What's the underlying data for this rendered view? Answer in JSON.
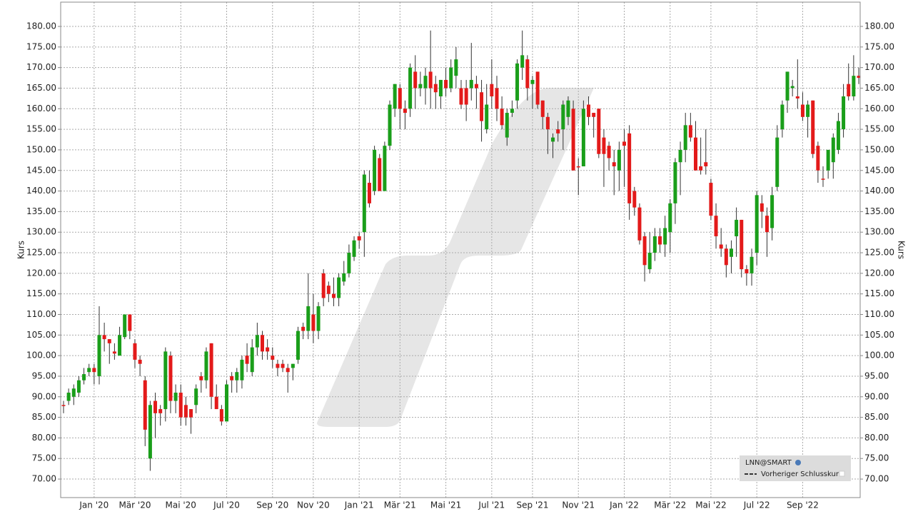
{
  "chart_data": {
    "type": "candlestick",
    "y_label": "Kurs",
    "legend": {
      "title": "LNN@SMART",
      "entry": "Vorheriger Schlusskurs"
    },
    "up_color": "#1a9e1a",
    "down_color": "#e31a1a",
    "grid": true,
    "ylim": [
      65.5,
      185.9
    ],
    "yticks": [
      {
        "value": 70,
        "label": "70.00"
      },
      {
        "value": 75,
        "label": "75.00"
      },
      {
        "value": 80,
        "label": "80.00"
      },
      {
        "value": 85,
        "label": "85.00"
      },
      {
        "value": 90,
        "label": "90.00"
      },
      {
        "value": 95,
        "label": "95.00"
      },
      {
        "value": 100,
        "label": "100.00"
      },
      {
        "value": 105,
        "label": "105.00"
      },
      {
        "value": 110,
        "label": "110.00"
      },
      {
        "value": 115,
        "label": "115.00"
      },
      {
        "value": 120,
        "label": "120.00"
      },
      {
        "value": 125,
        "label": "125.00"
      },
      {
        "value": 130,
        "label": "130.00"
      },
      {
        "value": 135,
        "label": "135.00"
      },
      {
        "value": 140,
        "label": "140.00"
      },
      {
        "value": 145,
        "label": "145.00"
      },
      {
        "value": 150,
        "label": "150.00"
      },
      {
        "value": 155,
        "label": "155.00"
      },
      {
        "value": 160,
        "label": "160.00"
      },
      {
        "value": 165,
        "label": "165.00"
      },
      {
        "value": 170,
        "label": "170.00"
      },
      {
        "value": 175,
        "label": "175.00"
      },
      {
        "value": 180,
        "label": "180.00"
      }
    ],
    "categories": [
      null,
      null,
      null,
      null,
      null,
      null,
      "Jan '20",
      null,
      null,
      null,
      null,
      null,
      null,
      null,
      "Mär '20",
      null,
      null,
      null,
      null,
      null,
      null,
      null,
      null,
      "Mai '20",
      null,
      null,
      null,
      null,
      null,
      null,
      null,
      null,
      "Jul '20",
      null,
      null,
      null,
      null,
      null,
      null,
      null,
      null,
      "Sep '20",
      null,
      null,
      null,
      null,
      null,
      null,
      null,
      "Nov '20",
      null,
      null,
      null,
      null,
      null,
      null,
      null,
      null,
      "Jan '21",
      null,
      null,
      null,
      null,
      null,
      null,
      null,
      "Mär '21",
      null,
      null,
      null,
      null,
      null,
      null,
      null,
      null,
      "Mai '21",
      null,
      null,
      null,
      null,
      null,
      null,
      null,
      null,
      "Jul '21",
      null,
      null,
      null,
      null,
      null,
      null,
      null,
      "Sep '21",
      null,
      null,
      null,
      null,
      null,
      null,
      null,
      null,
      "Nov '21",
      null,
      null,
      null,
      null,
      null,
      null,
      null,
      null,
      "Jan '22",
      null,
      null,
      null,
      null,
      null,
      null,
      null,
      null,
      "Mär '22",
      null,
      null,
      null,
      null,
      null,
      null,
      null,
      "Mai '22",
      null,
      null,
      null,
      null,
      null,
      null,
      null,
      null,
      "Jul '22",
      null,
      null,
      null,
      null,
      null,
      null,
      null,
      null,
      "Sep '22",
      null,
      null,
      null,
      null,
      null,
      null,
      null,
      null,
      null,
      null,
      null
    ],
    "open": [
      88,
      89,
      90,
      91,
      94,
      96,
      97,
      95,
      105,
      104,
      101,
      100,
      104.5,
      110,
      103,
      99,
      94,
      75,
      89,
      87,
      87,
      100,
      89,
      91,
      88,
      87,
      88,
      95,
      94,
      103,
      90,
      87,
      84,
      95,
      94,
      94,
      100,
      96,
      102,
      105,
      102,
      100,
      98,
      98,
      97,
      97,
      99,
      107,
      106,
      110,
      106,
      120,
      117,
      115,
      114,
      118,
      120,
      124,
      129,
      130,
      142,
      140,
      148,
      140,
      151,
      160,
      165,
      160,
      160,
      169,
      165,
      165,
      169,
      166,
      163,
      167,
      165,
      168,
      165,
      165,
      165,
      166,
      164,
      155,
      166,
      165,
      160,
      153,
      159,
      162,
      170,
      172,
      166,
      169,
      162,
      158,
      152,
      155,
      155,
      158,
      160,
      146,
      146,
      161,
      159,
      160,
      153,
      151,
      147,
      145,
      152,
      154,
      140,
      136,
      129,
      121,
      125,
      129,
      127,
      130,
      137,
      147,
      150,
      156,
      153,
      146,
      147,
      142,
      134,
      127,
      126,
      124,
      129,
      133,
      121,
      120,
      125,
      137,
      134,
      131,
      141,
      155,
      162,
      165,
      163,
      161,
      158,
      162,
      151,
      143,
      145,
      147,
      150,
      155,
      166,
      163,
      168
    ],
    "high": [
      89,
      92,
      93,
      95,
      97,
      98,
      98,
      112,
      108,
      104,
      103,
      107,
      110,
      110,
      104,
      100,
      95,
      89,
      91,
      88,
      102,
      101,
      93,
      93,
      90,
      87,
      93,
      96,
      102,
      103,
      93,
      88,
      94,
      96,
      97,
      100,
      103,
      104,
      108,
      106,
      104,
      102,
      99,
      99,
      98,
      98,
      107,
      108,
      120,
      115,
      113,
      121,
      118,
      119,
      120,
      123,
      127,
      129,
      130,
      145,
      145,
      151,
      149,
      152,
      162,
      166,
      166,
      162,
      171,
      173,
      169,
      170,
      179,
      168,
      167,
      170,
      172,
      175,
      167,
      167,
      176,
      168,
      167,
      166,
      172,
      168,
      163,
      160,
      162,
      172,
      179,
      173,
      168,
      169,
      162,
      159,
      154,
      157,
      162,
      163,
      162,
      148,
      162,
      163,
      159,
      160,
      155,
      152,
      150,
      152,
      155,
      156,
      141,
      137,
      130,
      130,
      131,
      131,
      134,
      138,
      148,
      152,
      159,
      159,
      157,
      153,
      155,
      143,
      137,
      131,
      127,
      128,
      136,
      133,
      122,
      126,
      140,
      139,
      136,
      141,
      156,
      162,
      169,
      167,
      172,
      164,
      162,
      162,
      152,
      146,
      150,
      154,
      159,
      166,
      171,
      173,
      170
    ],
    "low": [
      86,
      88,
      88,
      90,
      93,
      95,
      93,
      93,
      101,
      98,
      99,
      100,
      104,
      104,
      97,
      95,
      78,
      72,
      80,
      83,
      84,
      86,
      86,
      83,
      83,
      81,
      86,
      91,
      92,
      87,
      87,
      83,
      84,
      91,
      91,
      92,
      96,
      95,
      100,
      99,
      99,
      97,
      95,
      96,
      91,
      94,
      98,
      104,
      104,
      103,
      104,
      112,
      113,
      112,
      112,
      117,
      119,
      123,
      126,
      124,
      136,
      139,
      140,
      140,
      150,
      158,
      155,
      155,
      158,
      160,
      163,
      161,
      160,
      160,
      160,
      163,
      164,
      165,
      160,
      157,
      162,
      160,
      152,
      154,
      160,
      157,
      155,
      151,
      158,
      160,
      167,
      162,
      160,
      160,
      155,
      149,
      148,
      152,
      150,
      156,
      145,
      139,
      146,
      156,
      153,
      148,
      141,
      145,
      139,
      140,
      141,
      133,
      134,
      127,
      118,
      120,
      123,
      125,
      124,
      125,
      132,
      139,
      147,
      152,
      145,
      144,
      144,
      133,
      126,
      124,
      119,
      120,
      124,
      119,
      117,
      117,
      122,
      131,
      124,
      128,
      140,
      153,
      159,
      163,
      160,
      157,
      153,
      148,
      142,
      141,
      143,
      143,
      149,
      153,
      162,
      162,
      166
    ],
    "close": [
      88,
      91,
      92,
      94,
      95.5,
      97,
      96,
      105,
      104,
      103,
      100.5,
      105,
      110,
      106,
      99,
      98,
      82,
      88,
      86,
      86,
      101,
      89,
      91,
      85,
      85,
      85,
      92,
      94,
      101,
      90,
      87,
      84,
      93,
      94,
      96,
      99,
      98,
      102,
      105,
      101,
      101,
      99,
      97,
      97,
      96,
      98,
      106,
      106,
      112,
      106,
      112,
      114,
      115,
      114,
      119,
      120,
      125,
      128,
      128,
      144,
      137,
      150,
      140,
      151,
      161,
      166,
      160,
      159,
      170,
      165,
      166,
      168,
      165,
      164,
      167,
      165,
      170,
      172,
      161,
      161,
      167,
      165,
      157,
      161,
      163,
      160,
      156,
      159,
      160,
      171,
      173,
      165,
      167,
      161,
      158,
      155,
      153,
      154,
      161,
      162,
      145,
      146,
      160,
      158,
      158,
      149,
      149,
      148,
      146,
      150,
      151,
      137,
      136,
      128,
      122,
      125,
      129,
      127,
      131,
      137,
      147,
      150,
      156,
      153,
      145,
      145,
      146,
      134,
      129,
      126,
      122,
      126,
      133,
      121,
      120,
      124,
      139,
      135,
      130,
      139,
      153,
      161,
      169,
      165.5,
      162.5,
      158,
      161,
      149,
      145,
      143,
      150,
      153,
      157,
      163,
      163,
      168,
      167.5
    ]
  }
}
